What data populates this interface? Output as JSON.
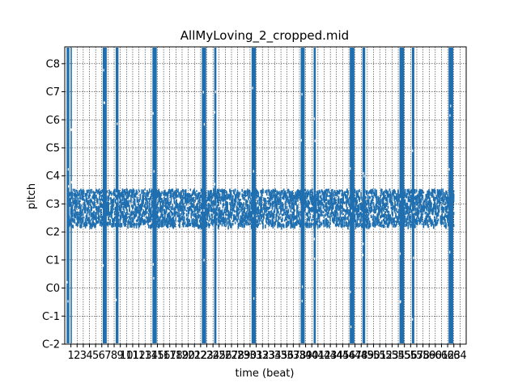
{
  "chart_data": {
    "type": "heatmap",
    "title": "AllMyLoving_2_cropped.mid",
    "xlabel": "time (beat)",
    "ylabel": "pitch",
    "xlim": [
      0,
      65
    ],
    "ylim": [
      -2,
      8.6
    ],
    "y_ticks": [
      {
        "label": "C-2",
        "value": -2
      },
      {
        "label": "C-1",
        "value": -1
      },
      {
        "label": "C0",
        "value": 0
      },
      {
        "label": "C1",
        "value": 1
      },
      {
        "label": "C2",
        "value": 2
      },
      {
        "label": "C3",
        "value": 3
      },
      {
        "label": "C4",
        "value": 4
      },
      {
        "label": "C5",
        "value": 5
      },
      {
        "label": "C6",
        "value": 6
      },
      {
        "label": "C7",
        "value": 7
      },
      {
        "label": "C8",
        "value": 8
      }
    ],
    "x_ticks": [
      "1",
      "2",
      "3",
      "4",
      "5",
      "6",
      "7",
      "8",
      "9",
      "10",
      "11",
      "12",
      "13",
      "14",
      "15",
      "16",
      "17",
      "18",
      "19",
      "20",
      "21",
      "22",
      "23",
      "24",
      "25",
      "26",
      "27",
      "28",
      "29",
      "30",
      "31",
      "32",
      "33",
      "34",
      "35",
      "36",
      "37",
      "38",
      "39",
      "40",
      "41",
      "42",
      "43",
      "44",
      "45",
      "46",
      "47",
      "48",
      "49",
      "50",
      "51",
      "52",
      "53",
      "54",
      "55",
      "56",
      "57",
      "58",
      "59",
      "60",
      "61",
      "62",
      "63",
      "64"
    ],
    "grid": true,
    "note_color": "#1f6fb0",
    "full_range_columns": [
      {
        "start": 0.3,
        "end": 0.75
      },
      {
        "start": 0.95,
        "end": 1.15
      },
      {
        "start": 6.15,
        "end": 6.8
      },
      {
        "start": 8.25,
        "end": 8.7
      },
      {
        "start": 14.2,
        "end": 14.9
      },
      {
        "start": 22.2,
        "end": 22.9
      },
      {
        "start": 24.2,
        "end": 24.55
      },
      {
        "start": 30.25,
        "end": 30.95
      },
      {
        "start": 38.2,
        "end": 38.85
      },
      {
        "start": 40.3,
        "end": 40.65
      },
      {
        "start": 46.15,
        "end": 46.9
      },
      {
        "start": 48.2,
        "end": 48.65
      },
      {
        "start": 54.2,
        "end": 54.95
      },
      {
        "start": 56.2,
        "end": 56.6
      },
      {
        "start": 62.15,
        "end": 62.9
      }
    ],
    "dense_band": {
      "pitch_low": 2.25,
      "pitch_high": 3.55,
      "x_start": 0.5,
      "x_end": 63.0
    }
  }
}
